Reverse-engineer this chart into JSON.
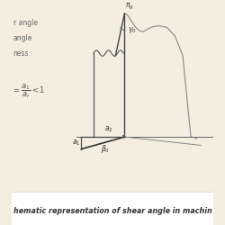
{
  "bg_color": "#f5ede0",
  "diagram_bg": "#f5ede0",
  "title_text": "hematic representation of shear angle in machin",
  "title_fontsize": 5.8,
  "line_color": "#555555",
  "thin_line_color": "#999999",
  "annotation_fontsize": 5.5
}
